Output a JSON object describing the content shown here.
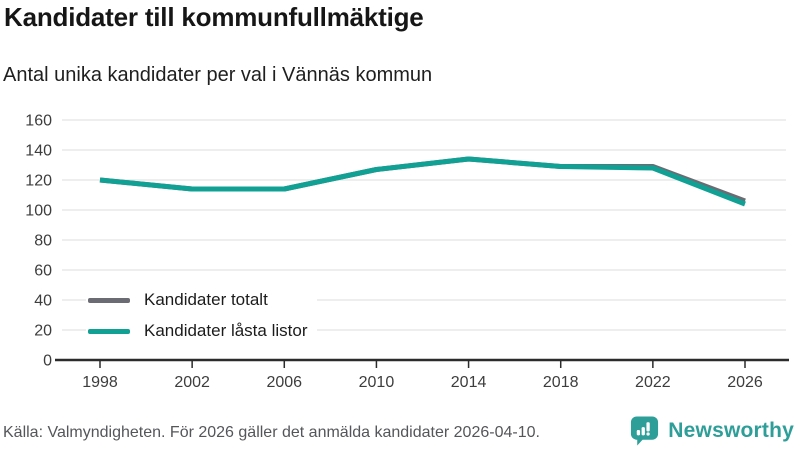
{
  "header": {
    "title": "Kandidater till kommunfullmäktige",
    "subtitle": "Antal unika kandidater per val i Vännäs kommun"
  },
  "chart_data": {
    "type": "line",
    "title": "Kandidater till kommunfullmäktige",
    "subtitle": "Antal unika kandidater per val i Vännäs kommun",
    "x": [
      1998,
      2002,
      2006,
      2010,
      2014,
      2018,
      2022,
      2026
    ],
    "series": [
      {
        "name": "Kandidater totalt",
        "color": "#6b6b74",
        "values": [
          120,
          114,
          114,
          127,
          134,
          129,
          129,
          106
        ]
      },
      {
        "name": "Kandidater låsta listor",
        "color": "#11a094",
        "values": [
          120,
          114,
          114,
          127,
          134,
          129,
          128,
          104
        ]
      }
    ],
    "ylim": [
      0,
      160
    ],
    "yticks": [
      0,
      20,
      40,
      60,
      80,
      100,
      120,
      140,
      160
    ],
    "grid": true,
    "legend_position": "inside-bottom-left"
  },
  "footer": {
    "source": "Källa: Valmyndigheten. För 2026 gäller det anmälda kandidater 2026-04-10.",
    "brand": "Newsworthy"
  },
  "colors": {
    "accent_teal": "#11a094",
    "series_gray": "#6b6b74",
    "brand_teal": "#2e9e99",
    "grid": "#e3e3e3",
    "axis": "#2b2b2b",
    "tick_text": "#3d3d3d"
  }
}
